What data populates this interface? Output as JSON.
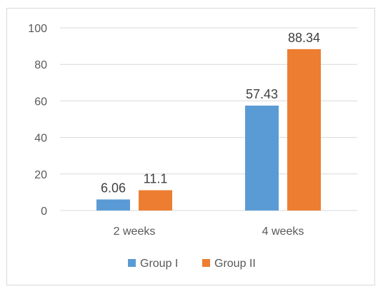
{
  "chart_data": {
    "type": "bar",
    "categories": [
      "2 weeks",
      "4 weeks"
    ],
    "series": [
      {
        "name": "Group I",
        "values": [
          6.06,
          57.43
        ],
        "labels": [
          "6.06",
          "57.43"
        ],
        "color": "#5b9bd5"
      },
      {
        "name": "Group II",
        "values": [
          11.1,
          88.34
        ],
        "labels": [
          "11.1",
          "88.34"
        ],
        "color": "#ed7d31"
      }
    ],
    "ylim": [
      0,
      100
    ],
    "yticks": [
      0,
      20,
      40,
      60,
      80,
      100
    ],
    "ytick_labels": [
      "0",
      "20",
      "40",
      "60",
      "80",
      "100"
    ],
    "grid": true,
    "gridline_color": "#d9d9d9",
    "legend": "bottom"
  }
}
